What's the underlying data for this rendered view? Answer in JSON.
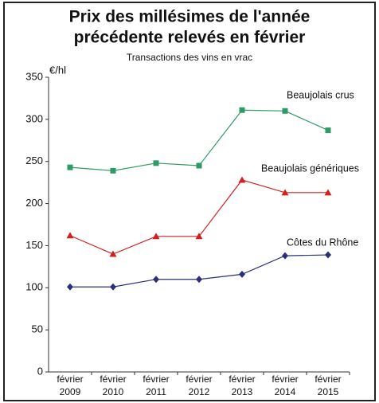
{
  "chart_data": {
    "type": "line",
    "title": [
      "Prix des millésimes de l'année",
      "précédente relevés en février"
    ],
    "subtitle": "Transactions des vins en vrac",
    "y_label": "€/hl",
    "categories": [
      "février 2009",
      "février 2010",
      "février 2011",
      "février 2012",
      "février 2013",
      "février 2014",
      "février 2015"
    ],
    "series": [
      {
        "name": "Beaujolais crus",
        "color": "#2e9a64",
        "marker": "square",
        "values": [
          243,
          239,
          248,
          245,
          311,
          310,
          287
        ]
      },
      {
        "name": "Beaujolais génériques",
        "color": "#d02020",
        "marker": "triangle",
        "values": [
          162,
          140,
          161,
          161,
          228,
          213,
          213
        ]
      },
      {
        "name": "Côtes du Rhône",
        "color": "#2a2f7a",
        "marker": "diamond",
        "values": [
          101,
          101,
          110,
          110,
          116,
          138,
          139
        ]
      }
    ],
    "ylim": [
      0,
      350
    ],
    "yticks": [
      0,
      50,
      100,
      150,
      200,
      250,
      300,
      350
    ],
    "grid": false
  }
}
